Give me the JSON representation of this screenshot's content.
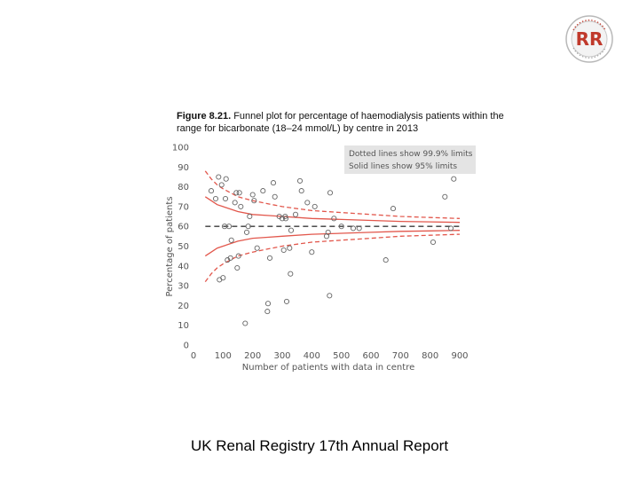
{
  "logo": {
    "text": "RR"
  },
  "figure": {
    "label": "Figure 8.21.",
    "caption": "Funnel plot for percentage of haemodialysis patients within the range for bicarbonate (18–24 mmol/L) by centre in 2013"
  },
  "footer": {
    "text": "UK Renal Registry 17th Annual Report"
  },
  "colors": {
    "red": "#e2574c",
    "dark": "#3a3a3a",
    "point_stroke": "#666666",
    "tick": "#555555"
  },
  "chart_data": {
    "type": "scatter",
    "title": "",
    "xlabel": "Number of patients with data in centre",
    "ylabel": "Percentage of patients",
    "xlim": [
      0,
      900
    ],
    "ylim": [
      0,
      100
    ],
    "x_ticks": [
      0,
      100,
      200,
      300,
      400,
      500,
      600,
      700,
      800,
      900
    ],
    "y_ticks": [
      0,
      10,
      20,
      30,
      40,
      50,
      60,
      70,
      80,
      90,
      100
    ],
    "x_tick_labels": [
      "0",
      "100",
      "200",
      "300",
      "400",
      "500",
      "600",
      "700",
      "800",
      "900"
    ],
    "y_tick_labels": [
      "0",
      "10",
      "20",
      "30",
      "40",
      "50",
      "60",
      "70",
      "80",
      "90",
      "100"
    ],
    "legend": {
      "lines": [
        "Dotted lines show 99.9% limits",
        "Solid lines show 95% limits"
      ],
      "placement": "top-right"
    },
    "target_mean": 60,
    "limits": {
      "n": [
        40,
        60,
        80,
        100,
        150,
        200,
        250,
        300,
        400,
        500,
        600,
        700,
        800,
        900
      ],
      "upper_999": [
        88,
        84,
        81,
        79,
        75,
        73,
        71.5,
        70,
        68,
        67,
        66,
        65,
        64.5,
        64
      ],
      "lower_999": [
        32,
        36,
        39,
        41,
        45,
        47,
        48.5,
        50,
        52,
        53,
        54,
        55,
        55.5,
        56
      ],
      "upper_95": [
        75,
        73,
        71,
        70,
        67.5,
        66,
        65.5,
        65,
        64,
        63.5,
        63,
        62.5,
        62.3,
        62
      ],
      "lower_95": [
        45,
        47,
        49,
        50,
        52.5,
        54,
        54.5,
        55,
        56,
        56.5,
        57,
        57.5,
        57.7,
        58
      ]
    },
    "points": [
      {
        "x": 60,
        "y": 78
      },
      {
        "x": 75,
        "y": 74
      },
      {
        "x": 85,
        "y": 85
      },
      {
        "x": 88,
        "y": 33
      },
      {
        "x": 95,
        "y": 81
      },
      {
        "x": 100,
        "y": 34
      },
      {
        "x": 105,
        "y": 60
      },
      {
        "x": 108,
        "y": 74
      },
      {
        "x": 110,
        "y": 84
      },
      {
        "x": 115,
        "y": 43
      },
      {
        "x": 120,
        "y": 60
      },
      {
        "x": 125,
        "y": 44
      },
      {
        "x": 128,
        "y": 53
      },
      {
        "x": 140,
        "y": 72
      },
      {
        "x": 145,
        "y": 77
      },
      {
        "x": 148,
        "y": 39
      },
      {
        "x": 152,
        "y": 45
      },
      {
        "x": 155,
        "y": 77
      },
      {
        "x": 160,
        "y": 70
      },
      {
        "x": 175,
        "y": 11
      },
      {
        "x": 180,
        "y": 57
      },
      {
        "x": 185,
        "y": 60
      },
      {
        "x": 190,
        "y": 65
      },
      {
        "x": 200,
        "y": 76
      },
      {
        "x": 205,
        "y": 73
      },
      {
        "x": 215,
        "y": 49
      },
      {
        "x": 235,
        "y": 78
      },
      {
        "x": 250,
        "y": 17
      },
      {
        "x": 252,
        "y": 21
      },
      {
        "x": 258,
        "y": 44
      },
      {
        "x": 270,
        "y": 82
      },
      {
        "x": 275,
        "y": 75
      },
      {
        "x": 290,
        "y": 65
      },
      {
        "x": 300,
        "y": 64
      },
      {
        "x": 305,
        "y": 48
      },
      {
        "x": 310,
        "y": 65
      },
      {
        "x": 312,
        "y": 64
      },
      {
        "x": 315,
        "y": 22
      },
      {
        "x": 325,
        "y": 49
      },
      {
        "x": 328,
        "y": 36
      },
      {
        "x": 330,
        "y": 58
      },
      {
        "x": 345,
        "y": 66
      },
      {
        "x": 360,
        "y": 83
      },
      {
        "x": 365,
        "y": 78
      },
      {
        "x": 385,
        "y": 72
      },
      {
        "x": 400,
        "y": 47
      },
      {
        "x": 410,
        "y": 70
      },
      {
        "x": 450,
        "y": 55
      },
      {
        "x": 455,
        "y": 57
      },
      {
        "x": 460,
        "y": 25
      },
      {
        "x": 462,
        "y": 77
      },
      {
        "x": 475,
        "y": 64
      },
      {
        "x": 500,
        "y": 60
      },
      {
        "x": 540,
        "y": 59
      },
      {
        "x": 560,
        "y": 59
      },
      {
        "x": 650,
        "y": 43
      },
      {
        "x": 675,
        "y": 69
      },
      {
        "x": 810,
        "y": 52
      },
      {
        "x": 850,
        "y": 75
      },
      {
        "x": 870,
        "y": 59
      },
      {
        "x": 880,
        "y": 84
      }
    ]
  }
}
